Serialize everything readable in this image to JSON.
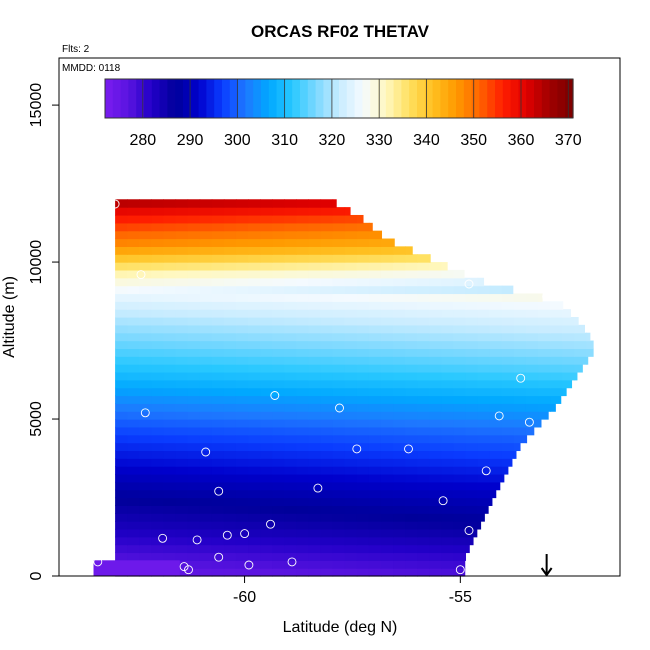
{
  "chart_data": {
    "type": "heatmap",
    "title": "ORCAS RF02 THETAV",
    "xlabel": "Latitude (deg N)",
    "ylabel": "Altitude (m)",
    "xlim": [
      -64.3,
      -51.3
    ],
    "ylim": [
      0,
      16500
    ],
    "x_ticks": [
      -60,
      -55
    ],
    "y_ticks": [
      0,
      5000,
      10000,
      15000
    ],
    "x_tick_labels": [
      "-60",
      "-55"
    ],
    "y_tick_labels": [
      "0",
      "5000",
      "10000",
      "15000"
    ],
    "notes": {
      "flights": "Flts: 2",
      "mmdd": "MMDD: 0118"
    },
    "colorbar": {
      "range": [
        272,
        371
      ],
      "ticks": [
        280,
        290,
        300,
        310,
        320,
        330,
        340,
        350,
        360,
        370
      ],
      "tick_labels": [
        "280",
        "290",
        "300",
        "310",
        "320",
        "330",
        "340",
        "350",
        "360",
        "370"
      ],
      "colors": [
        "#7a1cf0",
        "#5a14e0",
        "#2200c8",
        "#00009a",
        "#0000cc",
        "#0a3cff",
        "#1e78ff",
        "#00a8ff",
        "#28c8ff",
        "#7ad8ff",
        "#c8ecff",
        "#f4faff",
        "#fff8c0",
        "#ffe060",
        "#ffc020",
        "#ff9a00",
        "#ff6400",
        "#ff1e00",
        "#e00000",
        "#a00000",
        "#7a0000"
      ]
    },
    "field": {
      "left_edge_lat": -63.0,
      "profile_lat": [
        -63.0,
        -60.0,
        -58.2,
        -57.3,
        -56.7,
        -55.7,
        -54.6,
        -52.7,
        -52.2,
        -51.9,
        -52.3,
        -52.8,
        -53.6,
        -54.2,
        -54.9
      ],
      "profile_alt": [
        12000,
        12000,
        12000,
        11300,
        10600,
        10000,
        9300,
        8600,
        7900,
        7300,
        6500,
        5500,
        4300,
        2700,
        700
      ],
      "bottom_lat": -54.9,
      "bottom_alt": 0,
      "level_alt": [
        0,
        600,
        1500,
        2500,
        3500,
        4500,
        5500,
        6500,
        7500,
        8200,
        8800,
        9300,
        9700,
        10100,
        10500,
        11000,
        11500,
        12000
      ],
      "level_theta": [
        275,
        278,
        283,
        287,
        292,
        297,
        303,
        310,
        316,
        320,
        324,
        328,
        333,
        340,
        347,
        352,
        358,
        366
      ],
      "extra_bottom_strip": {
        "lat": [
          -63.5,
          -61.5
        ],
        "alt": [
          0,
          500
        ],
        "theta": 274
      }
    },
    "samples": [
      {
        "lat": -63.0,
        "alt": 11850
      },
      {
        "lat": -62.4,
        "alt": 9600
      },
      {
        "lat": -62.3,
        "alt": 5200
      },
      {
        "lat": -63.4,
        "alt": 450
      },
      {
        "lat": -61.9,
        "alt": 1200
      },
      {
        "lat": -61.4,
        "alt": 300
      },
      {
        "lat": -61.3,
        "alt": 200
      },
      {
        "lat": -61.1,
        "alt": 1150
      },
      {
        "lat": -60.9,
        "alt": 3950
      },
      {
        "lat": -60.6,
        "alt": 2700
      },
      {
        "lat": -60.6,
        "alt": 600
      },
      {
        "lat": -60.4,
        "alt": 1300
      },
      {
        "lat": -60.0,
        "alt": 1350
      },
      {
        "lat": -59.9,
        "alt": 350
      },
      {
        "lat": -59.3,
        "alt": 5750
      },
      {
        "lat": -59.4,
        "alt": 1650
      },
      {
        "lat": -58.9,
        "alt": 450
      },
      {
        "lat": -58.3,
        "alt": 2800
      },
      {
        "lat": -57.8,
        "alt": 5350
      },
      {
        "lat": -57.4,
        "alt": 4050
      },
      {
        "lat": -57.6,
        "alt": 12200
      },
      {
        "lat": -56.2,
        "alt": 4050
      },
      {
        "lat": -55.4,
        "alt": 2400
      },
      {
        "lat": -55.0,
        "alt": 200
      },
      {
        "lat": -54.8,
        "alt": 9300
      },
      {
        "lat": -54.4,
        "alt": 3350
      },
      {
        "lat": -54.1,
        "alt": 5100
      },
      {
        "lat": -54.8,
        "alt": 1450
      },
      {
        "lat": -53.6,
        "alt": 6300
      },
      {
        "lat": -53.4,
        "alt": 4900
      },
      {
        "lat": -53.0,
        "alt": 8900
      },
      {
        "lat": -51.7,
        "alt": 7400
      }
    ],
    "arrow_marker": {
      "lat": -53.0,
      "alt_top": 700,
      "alt_bottom": 0
    }
  }
}
